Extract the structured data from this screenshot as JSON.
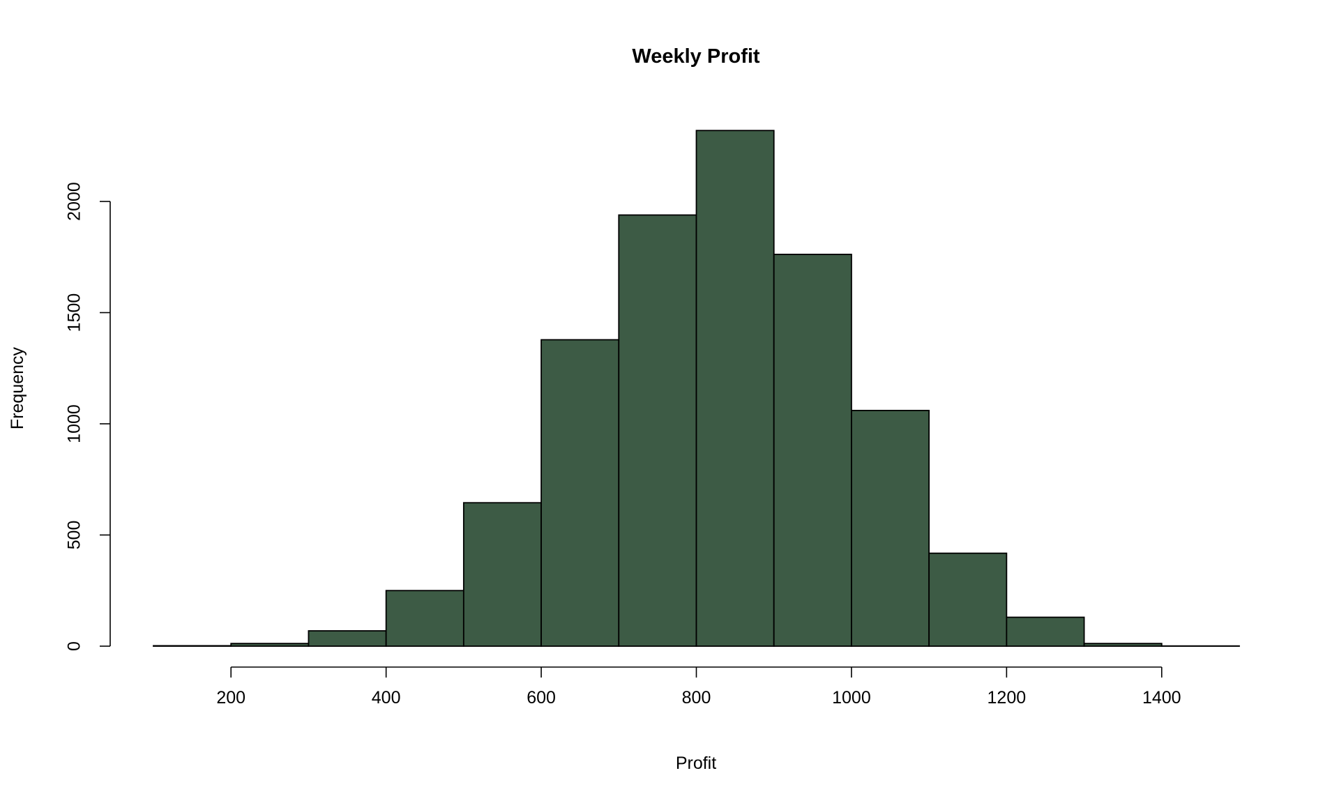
{
  "chart_data": {
    "type": "bar",
    "title": "Weekly Profit",
    "xlabel": "Profit",
    "ylabel": "Frequency",
    "bins": [
      [
        100,
        200
      ],
      [
        200,
        300
      ],
      [
        300,
        400
      ],
      [
        400,
        500
      ],
      [
        500,
        600
      ],
      [
        600,
        700
      ],
      [
        700,
        800
      ],
      [
        800,
        900
      ],
      [
        900,
        1000
      ],
      [
        1000,
        1100
      ],
      [
        1100,
        1200
      ],
      [
        1200,
        1300
      ],
      [
        1300,
        1400
      ],
      [
        1400,
        1500
      ]
    ],
    "values": [
      2,
      12,
      69,
      250,
      645,
      1378,
      1939,
      2319,
      1762,
      1060,
      418,
      130,
      12,
      1
    ],
    "xlim": [
      100,
      1500
    ],
    "ylim": [
      0,
      2000
    ],
    "xticks": [
      200,
      400,
      600,
      800,
      1000,
      1200,
      1400
    ],
    "xtick_labels": [
      "200",
      "400",
      "600",
      "800",
      "1000",
      "1200",
      "1400"
    ],
    "yticks": [
      0,
      500,
      1000,
      1500,
      2000
    ],
    "ytick_labels": [
      "0",
      "500",
      "1000",
      "1500",
      "2000"
    ],
    "bar_color": "#3d5b45",
    "edge_color": "#000000",
    "grid": false,
    "legend": "none"
  }
}
